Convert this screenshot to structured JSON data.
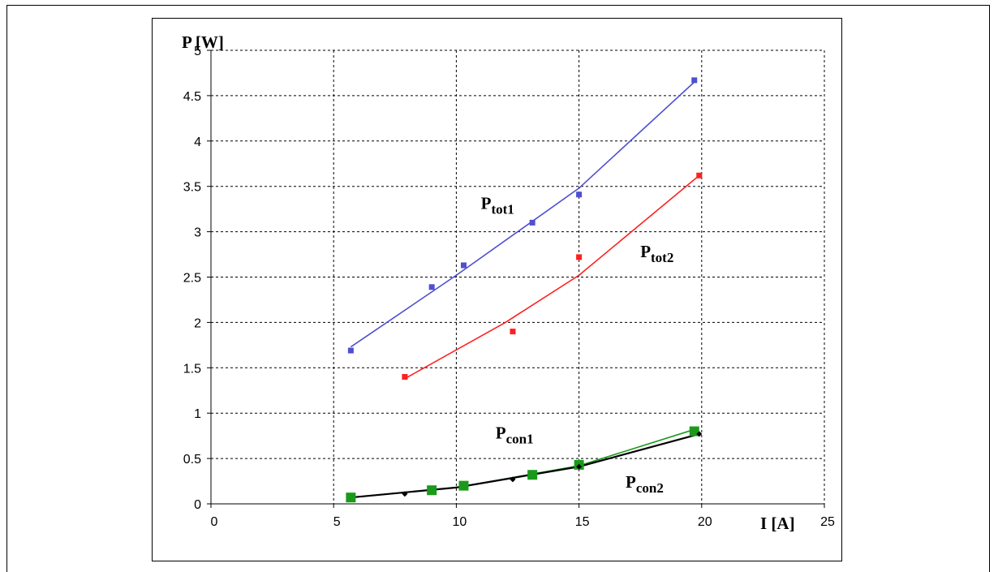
{
  "chart_data": {
    "type": "scatter",
    "xlabel": "I [A]",
    "ylabel": "P [W]",
    "xlim": [
      0,
      25
    ],
    "ylim": [
      0,
      5
    ],
    "x_ticks": [
      "0",
      "5",
      "10",
      "15",
      "20",
      "25"
    ],
    "y_ticks": [
      "0",
      "0.5",
      "1",
      "1.5",
      "2",
      "2.5",
      "3",
      "3.5",
      "4",
      "4.5",
      "5"
    ],
    "grid": true,
    "series": [
      {
        "name": "P_tot1",
        "label_main": "P",
        "label_sub": "tot1",
        "color": "#4f4fd0",
        "marker": "square-small",
        "points": [
          [
            5.7,
            1.69
          ],
          [
            9.0,
            2.39
          ],
          [
            10.3,
            2.63
          ],
          [
            13.1,
            3.1
          ],
          [
            15.0,
            3.41
          ],
          [
            19.7,
            4.67
          ]
        ],
        "trend": [
          [
            5.7,
            1.73
          ],
          [
            10.0,
            2.52
          ],
          [
            15.0,
            3.48
          ],
          [
            19.7,
            4.65
          ]
        ]
      },
      {
        "name": "P_tot2",
        "label_main": "P",
        "label_sub": "tot2",
        "color": "#ff2020",
        "marker": "square-small",
        "points": [
          [
            7.9,
            1.4
          ],
          [
            12.3,
            1.9
          ],
          [
            15.0,
            2.72
          ],
          [
            19.9,
            3.62
          ]
        ],
        "trend": [
          [
            7.9,
            1.38
          ],
          [
            12.0,
            2.0
          ],
          [
            15.0,
            2.52
          ],
          [
            19.9,
            3.62
          ]
        ]
      },
      {
        "name": "P_con1",
        "label_main": "P",
        "label_sub": "con1",
        "color": "#1a9a1a",
        "marker": "square",
        "points": [
          [
            5.7,
            0.07
          ],
          [
            9.0,
            0.15
          ],
          [
            10.3,
            0.2
          ],
          [
            13.1,
            0.32
          ],
          [
            15.0,
            0.43
          ],
          [
            19.7,
            0.8
          ]
        ],
        "trend": [
          [
            5.7,
            0.07
          ],
          [
            10.0,
            0.18
          ],
          [
            15.0,
            0.42
          ],
          [
            19.7,
            0.82
          ]
        ]
      },
      {
        "name": "P_con2",
        "label_main": "P",
        "label_sub": "con2",
        "color": "#000000",
        "marker": "diamond-small",
        "points": [
          [
            7.9,
            0.11
          ],
          [
            12.3,
            0.27
          ],
          [
            15.0,
            0.41
          ],
          [
            19.9,
            0.77
          ]
        ],
        "trend": [
          [
            5.7,
            0.07
          ],
          [
            10.0,
            0.18
          ],
          [
            15.0,
            0.41
          ],
          [
            19.9,
            0.77
          ]
        ]
      }
    ],
    "labels": [
      {
        "series": "P_tot1",
        "x": 11.0,
        "y": 3.25
      },
      {
        "series": "P_tot2",
        "x": 17.5,
        "y": 2.72
      },
      {
        "series": "P_con1",
        "x": 11.6,
        "y": 0.72
      },
      {
        "series": "P_con2",
        "x": 16.9,
        "y": 0.18
      }
    ]
  }
}
